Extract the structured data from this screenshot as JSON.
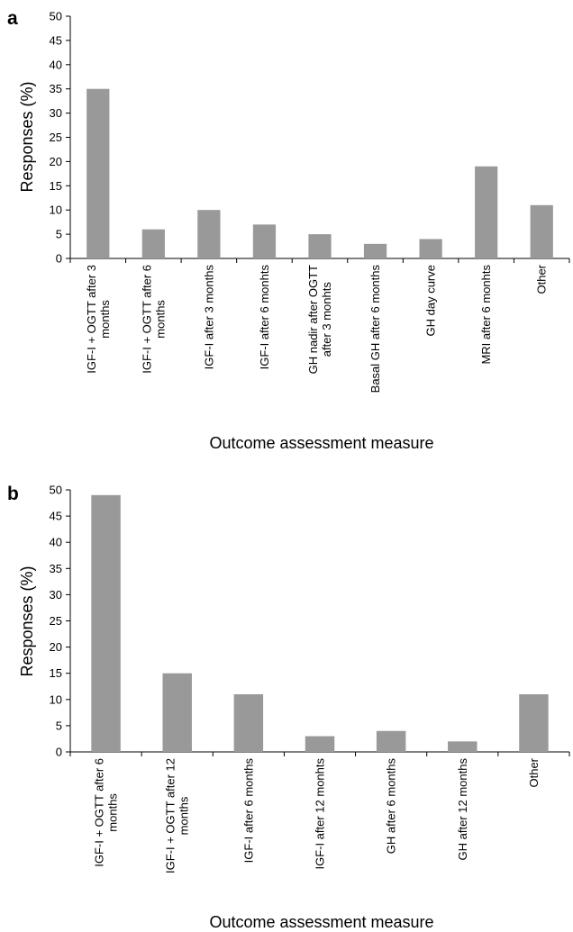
{
  "chart_data": [
    {
      "panel_label": "a",
      "type": "bar",
      "categories": [
        [
          "IGF-I + OGTT after 3",
          "months"
        ],
        [
          "IGF-I + OGTT after 6",
          "months"
        ],
        [
          "IGF-I after 3 months"
        ],
        [
          "IGF-I after 6 monhts"
        ],
        [
          "GH nadir after OGTT",
          "after 3 monhts"
        ],
        [
          "Basal GH after 6 months"
        ],
        [
          "GH day curve"
        ],
        [
          "MRI after 6 monhts"
        ],
        [
          "Other"
        ]
      ],
      "values": [
        35,
        6,
        10,
        7,
        5,
        3,
        4,
        19,
        11
      ],
      "xlabel": "Outcome assessment measure",
      "ylabel": "Responses (%)",
      "ylim": [
        0,
        50
      ],
      "yticks": [
        0,
        5,
        10,
        15,
        20,
        25,
        30,
        35,
        40,
        45,
        50
      ],
      "bar_color": "#999999",
      "grid": false
    },
    {
      "panel_label": "b",
      "type": "bar",
      "categories": [
        [
          "IGF-I + OGTT after 6",
          "months"
        ],
        [
          "IGF-I + OGTT after 12",
          "months"
        ],
        [
          "IGF-I after 6 months"
        ],
        [
          "IGF-I after 12 monhts"
        ],
        [
          "GH after 6 months"
        ],
        [
          "GH after 12 months"
        ],
        [
          "Other"
        ]
      ],
      "values": [
        49,
        15,
        11,
        3,
        4,
        2,
        11
      ],
      "xlabel": "Outcome assessment measure",
      "ylabel": "Responses (%)",
      "ylim": [
        0,
        50
      ],
      "yticks": [
        0,
        5,
        10,
        15,
        20,
        25,
        30,
        35,
        40,
        45,
        50
      ],
      "bar_color": "#999999",
      "grid": false
    }
  ]
}
